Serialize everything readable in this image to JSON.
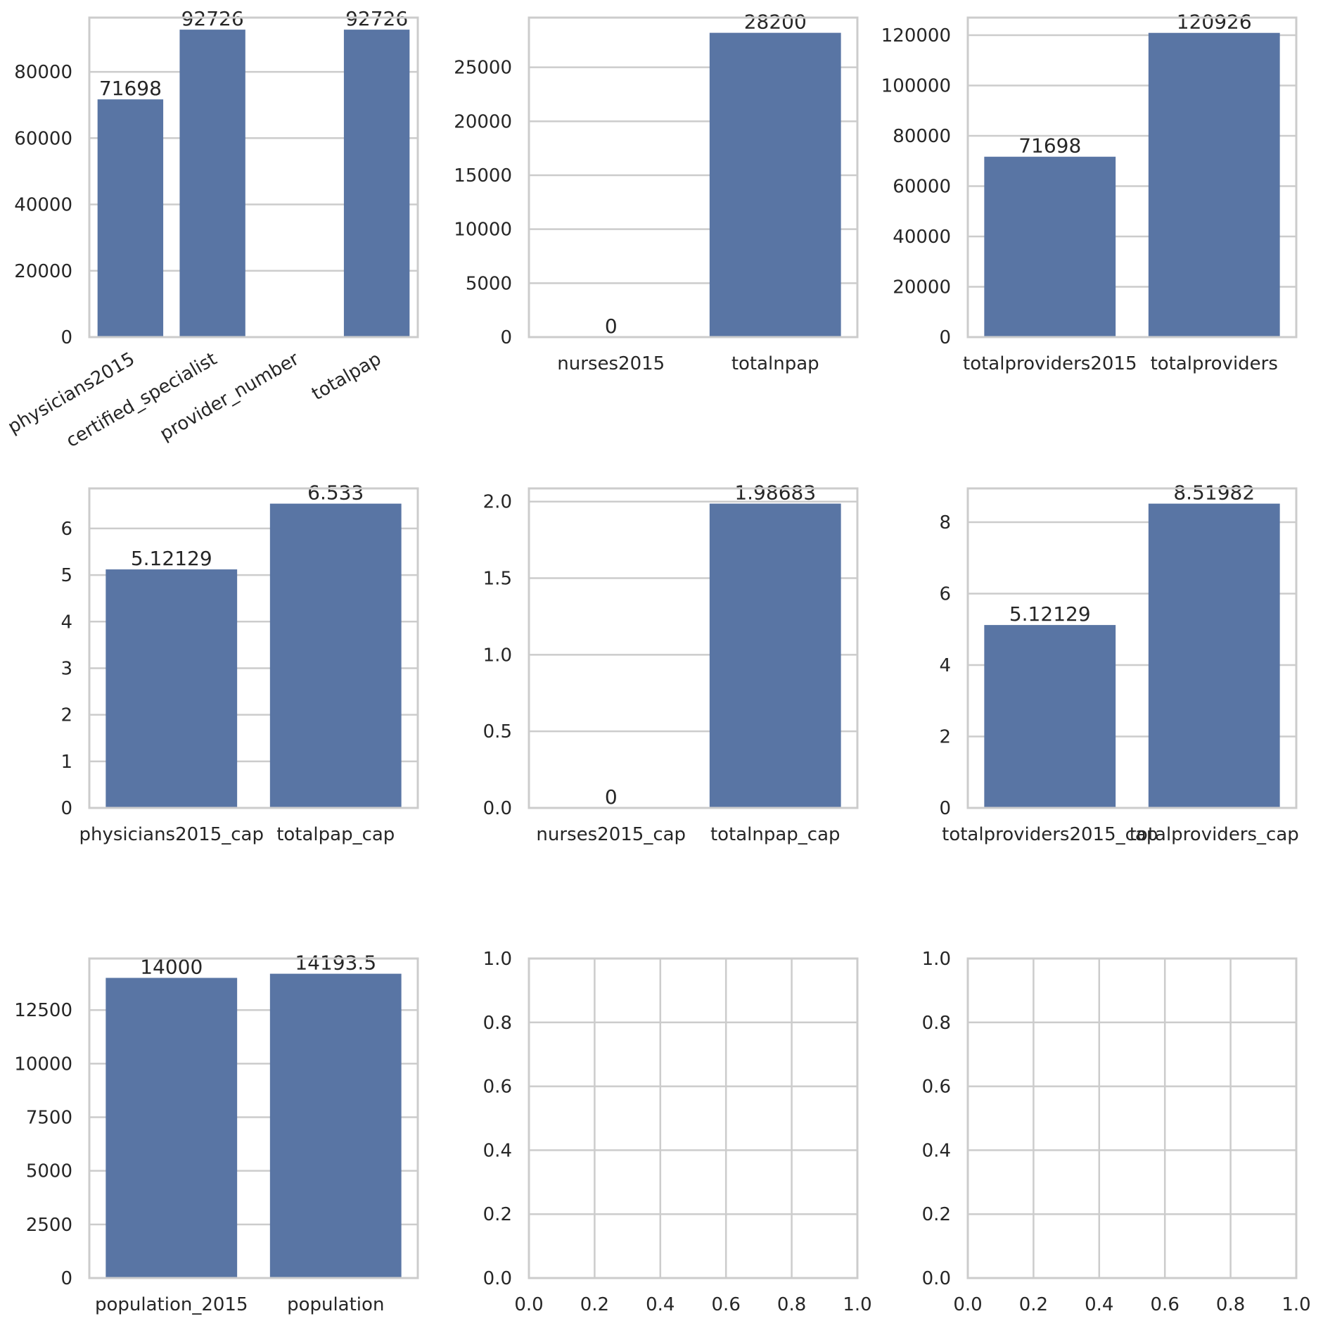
{
  "style": {
    "bar_color": "#5975a4",
    "grid_color": "#cccccc",
    "spine_color": "#cccccc",
    "text_color": "#262626",
    "background": "#ffffff"
  },
  "chart_data": [
    {
      "type": "bar",
      "categories": [
        "physicians2015",
        "certified_specialist",
        "provider_number",
        "totalpap"
      ],
      "values": [
        71698,
        92726,
        null,
        92726
      ],
      "bar_labels": [
        "71698",
        "92726",
        "",
        "92726"
      ],
      "ylim": [
        0,
        96360
      ],
      "yticks": [
        0,
        20000,
        40000,
        60000,
        80000
      ],
      "ytick_labels": [
        "0",
        "20000",
        "40000",
        "60000",
        "80000"
      ],
      "x_rotation": 30,
      "grid": true
    },
    {
      "type": "bar",
      "categories": [
        "nurses2015",
        "totalnpap"
      ],
      "values": [
        0,
        28200
      ],
      "bar_labels": [
        "0",
        "28200"
      ],
      "ylim": [
        0,
        29610
      ],
      "yticks": [
        0,
        5000,
        10000,
        15000,
        20000,
        25000
      ],
      "ytick_labels": [
        "0",
        "5000",
        "10000",
        "15000",
        "20000",
        "25000"
      ],
      "grid": true
    },
    {
      "type": "bar",
      "categories": [
        "totalproviders2015",
        "totalproviders"
      ],
      "values": [
        71698,
        120926
      ],
      "bar_labels": [
        "71698",
        "120926"
      ],
      "ylim": [
        0,
        127000
      ],
      "yticks": [
        0,
        20000,
        40000,
        60000,
        80000,
        100000,
        120000
      ],
      "ytick_labels": [
        "0",
        "20000",
        "40000",
        "60000",
        "80000",
        "100000",
        "120000"
      ],
      "grid": true
    },
    {
      "type": "bar",
      "categories": [
        "physicians2015_cap",
        "totalpap_cap"
      ],
      "values": [
        5.12129,
        6.533
      ],
      "bar_labels": [
        "5.12129",
        "6.533"
      ],
      "ylim": [
        0,
        6.86
      ],
      "yticks": [
        0,
        1,
        2,
        3,
        4,
        5,
        6
      ],
      "ytick_labels": [
        "0",
        "1",
        "2",
        "3",
        "4",
        "5",
        "6"
      ],
      "grid": true
    },
    {
      "type": "bar",
      "categories": [
        "nurses2015_cap",
        "totalnpap_cap"
      ],
      "values": [
        0,
        1.98683
      ],
      "bar_labels": [
        "0",
        "1.98683"
      ],
      "ylim": [
        0,
        2.086
      ],
      "yticks": [
        0,
        0.5,
        1.0,
        1.5,
        2.0
      ],
      "ytick_labels": [
        "0.0",
        "0.5",
        "1.0",
        "1.5",
        "2.0"
      ],
      "grid": true
    },
    {
      "type": "bar",
      "categories": [
        "totalproviders2015_cap",
        "totalproviders_cap"
      ],
      "values": [
        5.12129,
        8.51982
      ],
      "bar_labels": [
        "5.12129",
        "8.51982"
      ],
      "ylim": [
        0,
        8.946
      ],
      "yticks": [
        0,
        2,
        4,
        6,
        8
      ],
      "ytick_labels": [
        "0",
        "2",
        "4",
        "6",
        "8"
      ],
      "grid": true
    },
    {
      "type": "bar",
      "categories": [
        "population_2015",
        "population"
      ],
      "values": [
        14000,
        14193.5
      ],
      "bar_labels": [
        "14000",
        "14193.5"
      ],
      "ylim": [
        0,
        14903
      ],
      "yticks": [
        0,
        2500,
        5000,
        7500,
        10000,
        12500
      ],
      "ytick_labels": [
        "0",
        "2500",
        "5000",
        "7500",
        "10000",
        "12500"
      ],
      "grid": true
    },
    {
      "type": "empty",
      "xlim": [
        0,
        1
      ],
      "ylim": [
        0,
        1
      ],
      "xticks": [
        0,
        0.2,
        0.4,
        0.6,
        0.8,
        1.0
      ],
      "xtick_labels": [
        "0.0",
        "0.2",
        "0.4",
        "0.6",
        "0.8",
        "1.0"
      ],
      "yticks": [
        0,
        0.2,
        0.4,
        0.6,
        0.8,
        1.0
      ],
      "ytick_labels": [
        "0.0",
        "0.2",
        "0.4",
        "0.6",
        "0.8",
        "1.0"
      ],
      "grid": true
    },
    {
      "type": "empty",
      "xlim": [
        0,
        1
      ],
      "ylim": [
        0,
        1
      ],
      "xticks": [
        0,
        0.2,
        0.4,
        0.6,
        0.8,
        1.0
      ],
      "xtick_labels": [
        "0.0",
        "0.2",
        "0.4",
        "0.6",
        "0.8",
        "1.0"
      ],
      "yticks": [
        0,
        0.2,
        0.4,
        0.6,
        0.8,
        1.0
      ],
      "ytick_labels": [
        "0.0",
        "0.2",
        "0.4",
        "0.6",
        "0.8",
        "1.0"
      ],
      "grid": true
    }
  ]
}
